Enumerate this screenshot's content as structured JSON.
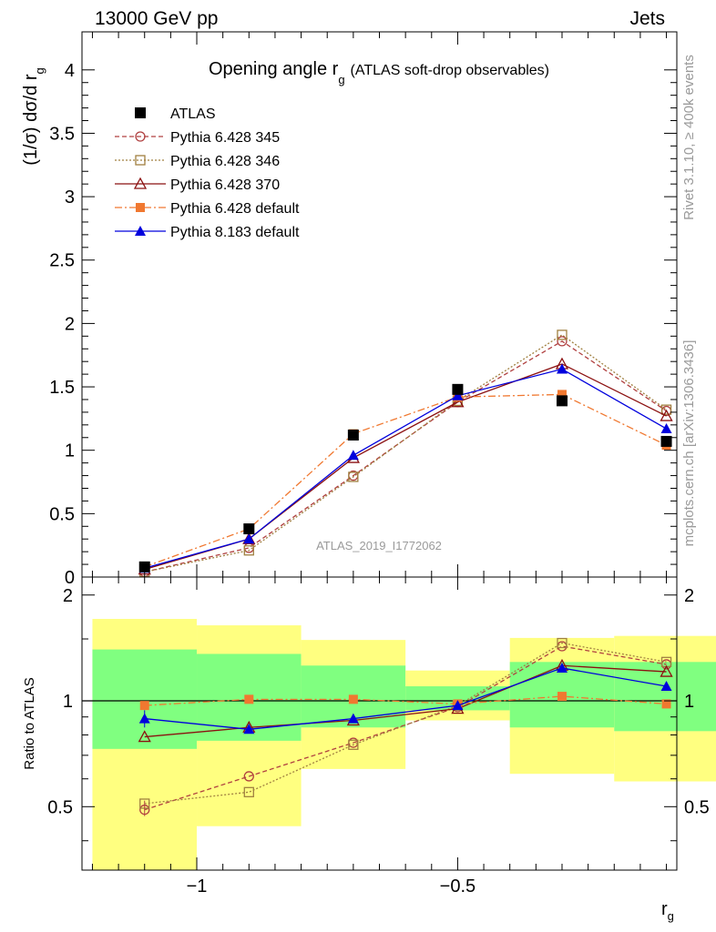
{
  "header": {
    "left": "13000 GeV pp",
    "right": "Jets"
  },
  "side": {
    "rivet": "Rivet 3.1.10, ≥ 400k events",
    "mcplots": "mcplots.cern.ch [arXiv:1306.3436]"
  },
  "title": {
    "main": "Opening angle r",
    "sub": "g",
    "note": "(ATLAS soft-drop observables)"
  },
  "watermark": "ATLAS_2019_I1772062",
  "chart_data": [
    {
      "type": "line",
      "name": "main",
      "ylabel": "(1/σ) dσ/d r",
      "ylabel_sub": "g",
      "ylim": [
        0,
        4.3
      ],
      "xlim": [
        -1.22,
        -0.08
      ],
      "yticks": [
        "0",
        "0.5",
        "1",
        "1.5",
        "2",
        "2.5",
        "3",
        "3.5",
        "4"
      ],
      "x": [
        -1.1,
        -0.9,
        -0.7,
        -0.5,
        -0.3,
        -0.1
      ],
      "series": [
        {
          "name": "ATLAS",
          "color": "#000000",
          "marker": "square-filled",
          "values": [
            0.08,
            0.38,
            1.12,
            1.48,
            1.39,
            1.07
          ]
        },
        {
          "name": "Pythia 6.428 345",
          "color": "#b04040",
          "marker": "circle-open",
          "dash": "5,3",
          "values": [
            0.04,
            0.23,
            0.8,
            1.38,
            1.86,
            1.31
          ]
        },
        {
          "name": "Pythia 6.428 346",
          "color": "#a08040",
          "marker": "square-open",
          "dash": "2,2",
          "values": [
            0.04,
            0.21,
            0.79,
            1.39,
            1.91,
            1.32
          ]
        },
        {
          "name": "Pythia 6.428 370",
          "color": "#8b1010",
          "marker": "triangle-open",
          "values": [
            0.06,
            0.3,
            0.94,
            1.38,
            1.68,
            1.27
          ]
        },
        {
          "name": "Pythia 6.428 default",
          "color": "#f07830",
          "marker": "square-filled",
          "dash": "8,3,2,3",
          "values": [
            0.08,
            0.38,
            1.13,
            1.42,
            1.44,
            1.04
          ]
        },
        {
          "name": "Pythia 8.183 default",
          "color": "#0000dd",
          "marker": "triangle-filled",
          "values": [
            0.07,
            0.3,
            0.96,
            1.43,
            1.64,
            1.17
          ]
        }
      ]
    },
    {
      "type": "line",
      "name": "ratio",
      "ylabel": "Ratio to ATLAS",
      "ylim": [
        0.33,
        2.25
      ],
      "xlim": [
        -1.22,
        -0.08
      ],
      "yticks": [
        "0.5",
        "1",
        "2"
      ],
      "xticks": [
        "−1",
        "−0.5"
      ],
      "xlabel": "r",
      "xlabel_sub": "g",
      "bins": [
        {
          "lo": -1.2,
          "hi": -1.0,
          "yellow": [
            0.33,
            1.71
          ],
          "green": [
            0.73,
            1.4
          ]
        },
        {
          "lo": -1.0,
          "hi": -0.8,
          "yellow": [
            0.44,
            1.64
          ],
          "green": [
            0.77,
            1.36
          ]
        },
        {
          "lo": -0.8,
          "hi": -0.6,
          "yellow": [
            0.64,
            1.49
          ],
          "green": [
            0.84,
            1.26
          ]
        },
        {
          "lo": -0.6,
          "hi": -0.4,
          "yellow": [
            0.88,
            1.22
          ],
          "green": [
            0.94,
            1.1
          ]
        },
        {
          "lo": -0.4,
          "hi": -0.2,
          "yellow": [
            0.62,
            1.51
          ],
          "green": [
            0.84,
            1.29
          ]
        },
        {
          "lo": -0.2,
          "hi": 0.0,
          "yellow": [
            0.59,
            1.53
          ],
          "green": [
            0.82,
            1.29
          ]
        }
      ],
      "x": [
        -1.1,
        -0.9,
        -0.7,
        -0.5,
        -0.3,
        -0.1
      ],
      "series": [
        {
          "name": "Pythia 6.428 345",
          "color": "#b04040",
          "marker": "circle-open",
          "dash": "5,3",
          "values": [
            0.49,
            0.61,
            0.76,
            0.96,
            1.43,
            1.27
          ]
        },
        {
          "name": "Pythia 6.428 346",
          "color": "#a08040",
          "marker": "square-open",
          "dash": "2,2",
          "values": [
            0.51,
            0.55,
            0.75,
            0.97,
            1.46,
            1.29
          ]
        },
        {
          "name": "Pythia 6.428 370",
          "color": "#8b1010",
          "marker": "triangle-open",
          "values": [
            0.79,
            0.84,
            0.88,
            0.95,
            1.26,
            1.21
          ]
        },
        {
          "name": "Pythia 6.428 default",
          "color": "#f07830",
          "marker": "square-filled",
          "dash": "8,3,2,3",
          "values": [
            0.97,
            1.01,
            1.01,
            0.98,
            1.03,
            0.98
          ]
        },
        {
          "name": "Pythia 8.183 default",
          "color": "#0000dd",
          "marker": "triangle-filled",
          "values": [
            0.89,
            0.83,
            0.89,
            0.97,
            1.24,
            1.1
          ]
        }
      ]
    }
  ]
}
